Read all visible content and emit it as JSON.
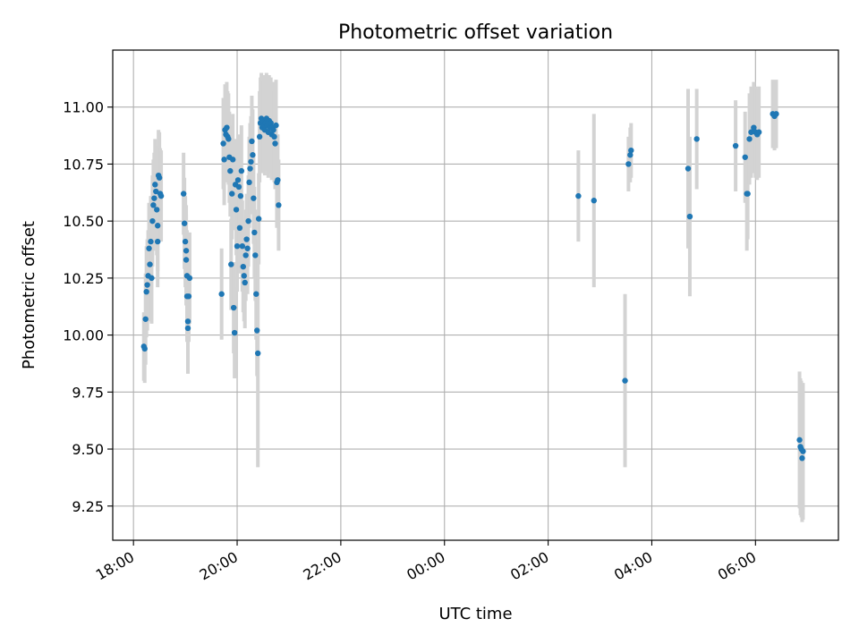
{
  "chart_data": {
    "type": "scatter",
    "title": "Photometric offset variation",
    "xlabel": "UTC time",
    "ylabel": "Photometric offset",
    "grid": true,
    "x_range": [
      "17:36",
      "07:36"
    ],
    "ylim": [
      9.1,
      11.25
    ],
    "xticks": [
      "18:00",
      "20:00",
      "22:00",
      "00:00",
      "02:00",
      "04:00",
      "06:00"
    ],
    "yticks": [
      "9.25",
      "9.50",
      "9.75",
      "10.00",
      "10.25",
      "10.50",
      "10.75",
      "11.00"
    ],
    "colors": {
      "point": "#1f77b4",
      "errorbar": "#d3d3d3",
      "grid": "#b0b0b0"
    },
    "points": [
      {
        "t": "18:12",
        "y": 9.95,
        "err": 0.15
      },
      {
        "t": "18:13",
        "y": 9.94,
        "err": 0.15
      },
      {
        "t": "18:14",
        "y": 10.07,
        "err": 0.2
      },
      {
        "t": "18:15",
        "y": 10.19,
        "err": 0.2
      },
      {
        "t": "18:16",
        "y": 10.22,
        "err": 0.2
      },
      {
        "t": "18:17",
        "y": 10.26,
        "err": 0.2
      },
      {
        "t": "18:18",
        "y": 10.38,
        "err": 0.2
      },
      {
        "t": "18:19",
        "y": 10.31,
        "err": 0.2
      },
      {
        "t": "18:20",
        "y": 10.41,
        "err": 0.2
      },
      {
        "t": "18:21",
        "y": 10.25,
        "err": 0.2
      },
      {
        "t": "18:22",
        "y": 10.5,
        "err": 0.2
      },
      {
        "t": "18:23",
        "y": 10.57,
        "err": 0.2
      },
      {
        "t": "18:24",
        "y": 10.6,
        "err": 0.2
      },
      {
        "t": "18:25",
        "y": 10.66,
        "err": 0.2
      },
      {
        "t": "18:26",
        "y": 10.63,
        "err": 0.2
      },
      {
        "t": "18:27",
        "y": 10.55,
        "err": 0.2
      },
      {
        "t": "18:28",
        "y": 10.48,
        "err": 0.2
      },
      {
        "t": "18:28",
        "y": 10.41,
        "err": 0.2
      },
      {
        "t": "18:29",
        "y": 10.7,
        "err": 0.2
      },
      {
        "t": "18:30",
        "y": 10.69,
        "err": 0.2
      },
      {
        "t": "18:31",
        "y": 10.62,
        "err": 0.2
      },
      {
        "t": "18:32",
        "y": 10.61,
        "err": 0.2
      },
      {
        "t": "18:58",
        "y": 10.62,
        "err": 0.18
      },
      {
        "t": "18:59",
        "y": 10.49,
        "err": 0.2
      },
      {
        "t": "19:00",
        "y": 10.41,
        "err": 0.2
      },
      {
        "t": "19:01",
        "y": 10.37,
        "err": 0.2
      },
      {
        "t": "19:01",
        "y": 10.33,
        "err": 0.2
      },
      {
        "t": "19:02",
        "y": 10.26,
        "err": 0.2
      },
      {
        "t": "19:02",
        "y": 10.17,
        "err": 0.2
      },
      {
        "t": "19:03",
        "y": 10.06,
        "err": 0.2
      },
      {
        "t": "19:03",
        "y": 10.03,
        "err": 0.2
      },
      {
        "t": "19:04",
        "y": 10.17,
        "err": 0.2
      },
      {
        "t": "19:05",
        "y": 10.25,
        "err": 0.2
      },
      {
        "t": "19:42",
        "y": 10.18,
        "err": 0.2
      },
      {
        "t": "19:44",
        "y": 10.84,
        "err": 0.2
      },
      {
        "t": "19:45",
        "y": 10.77,
        "err": 0.2
      },
      {
        "t": "19:46",
        "y": 10.9,
        "err": 0.2
      },
      {
        "t": "19:47",
        "y": 10.88,
        "err": 0.2
      },
      {
        "t": "19:48",
        "y": 10.91,
        "err": 0.2
      },
      {
        "t": "19:49",
        "y": 10.87,
        "err": 0.2
      },
      {
        "t": "19:50",
        "y": 10.86,
        "err": 0.2
      },
      {
        "t": "19:51",
        "y": 10.78,
        "err": 0.2
      },
      {
        "t": "19:52",
        "y": 10.72,
        "err": 0.2
      },
      {
        "t": "19:53",
        "y": 10.31,
        "err": 0.2
      },
      {
        "t": "19:54",
        "y": 10.62,
        "err": 0.2
      },
      {
        "t": "19:55",
        "y": 10.77,
        "err": 0.2
      },
      {
        "t": "19:56",
        "y": 10.12,
        "err": 0.2
      },
      {
        "t": "19:57",
        "y": 10.01,
        "err": 0.2
      },
      {
        "t": "19:58",
        "y": 10.66,
        "err": 0.2
      },
      {
        "t": "19:59",
        "y": 10.55,
        "err": 0.2
      },
      {
        "t": "20:00",
        "y": 10.39,
        "err": 0.2
      },
      {
        "t": "20:01",
        "y": 10.68,
        "err": 0.2
      },
      {
        "t": "20:02",
        "y": 10.65,
        "err": 0.2
      },
      {
        "t": "20:03",
        "y": 10.47,
        "err": 0.2
      },
      {
        "t": "20:04",
        "y": 10.61,
        "err": 0.2
      },
      {
        "t": "20:05",
        "y": 10.72,
        "err": 0.2
      },
      {
        "t": "20:06",
        "y": 10.39,
        "err": 0.2
      },
      {
        "t": "20:07",
        "y": 10.3,
        "err": 0.2
      },
      {
        "t": "20:08",
        "y": 10.26,
        "err": 0.2
      },
      {
        "t": "20:09",
        "y": 10.23,
        "err": 0.2
      },
      {
        "t": "20:10",
        "y": 10.35,
        "err": 0.2
      },
      {
        "t": "20:11",
        "y": 10.42,
        "err": 0.2
      },
      {
        "t": "20:12",
        "y": 10.38,
        "err": 0.2
      },
      {
        "t": "20:13",
        "y": 10.5,
        "err": 0.2
      },
      {
        "t": "20:14",
        "y": 10.67,
        "err": 0.2
      },
      {
        "t": "20:15",
        "y": 10.73,
        "err": 0.2
      },
      {
        "t": "20:16",
        "y": 10.76,
        "err": 0.2
      },
      {
        "t": "20:17",
        "y": 10.85,
        "err": 0.2
      },
      {
        "t": "20:18",
        "y": 10.79,
        "err": 0.2
      },
      {
        "t": "20:19",
        "y": 10.6,
        "err": 0.2
      },
      {
        "t": "20:20",
        "y": 10.45,
        "err": 0.2
      },
      {
        "t": "20:21",
        "y": 10.35,
        "err": 0.2
      },
      {
        "t": "20:22",
        "y": 10.18,
        "err": 0.2
      },
      {
        "t": "20:23",
        "y": 10.02,
        "err": 0.2
      },
      {
        "t": "20:24",
        "y": 9.92,
        "err": 0.5
      },
      {
        "t": "20:25",
        "y": 10.51,
        "err": 0.2
      },
      {
        "t": "20:26",
        "y": 10.87,
        "err": 0.2
      },
      {
        "t": "20:27",
        "y": 10.93,
        "err": 0.2
      },
      {
        "t": "20:28",
        "y": 10.95,
        "err": 0.2
      },
      {
        "t": "20:29",
        "y": 10.91,
        "err": 0.2
      },
      {
        "t": "20:30",
        "y": 10.94,
        "err": 0.2
      },
      {
        "t": "20:31",
        "y": 10.92,
        "err": 0.2
      },
      {
        "t": "20:32",
        "y": 10.9,
        "err": 0.2
      },
      {
        "t": "20:33",
        "y": 10.93,
        "err": 0.2
      },
      {
        "t": "20:34",
        "y": 10.95,
        "err": 0.2
      },
      {
        "t": "20:35",
        "y": 10.92,
        "err": 0.2
      },
      {
        "t": "20:36",
        "y": 10.89,
        "err": 0.2
      },
      {
        "t": "20:37",
        "y": 10.94,
        "err": 0.2
      },
      {
        "t": "20:38",
        "y": 10.91,
        "err": 0.2
      },
      {
        "t": "20:39",
        "y": 10.93,
        "err": 0.2
      },
      {
        "t": "20:40",
        "y": 10.88,
        "err": 0.2
      },
      {
        "t": "20:41",
        "y": 10.91,
        "err": 0.2
      },
      {
        "t": "20:42",
        "y": 10.9,
        "err": 0.2
      },
      {
        "t": "20:43",
        "y": 10.87,
        "err": 0.2
      },
      {
        "t": "20:44",
        "y": 10.84,
        "err": 0.2
      },
      {
        "t": "20:45",
        "y": 10.92,
        "err": 0.2
      },
      {
        "t": "20:46",
        "y": 10.67,
        "err": 0.2
      },
      {
        "t": "20:47",
        "y": 10.68,
        "err": 0.2
      },
      {
        "t": "20:48",
        "y": 10.57,
        "err": 0.2
      },
      {
        "t": "02:35",
        "y": 10.61,
        "err": 0.2
      },
      {
        "t": "02:53",
        "y": 10.59,
        "err": 0.38
      },
      {
        "t": "03:29",
        "y": 9.8,
        "err": 0.38
      },
      {
        "t": "03:33",
        "y": 10.75,
        "err": 0.12
      },
      {
        "t": "03:35",
        "y": 10.79,
        "err": 0.12
      },
      {
        "t": "03:36",
        "y": 10.81,
        "err": 0.12
      },
      {
        "t": "04:42",
        "y": 10.73,
        "err": 0.35
      },
      {
        "t": "04:44",
        "y": 10.52,
        "err": 0.35
      },
      {
        "t": "04:52",
        "y": 10.86,
        "err": 0.22
      },
      {
        "t": "05:37",
        "y": 10.83,
        "err": 0.2
      },
      {
        "t": "05:48",
        "y": 10.78,
        "err": 0.2
      },
      {
        "t": "05:50",
        "y": 10.62,
        "err": 0.25
      },
      {
        "t": "05:51",
        "y": 10.62,
        "err": 0.2
      },
      {
        "t": "05:53",
        "y": 10.86,
        "err": 0.2
      },
      {
        "t": "05:55",
        "y": 10.89,
        "err": 0.2
      },
      {
        "t": "05:58",
        "y": 10.91,
        "err": 0.2
      },
      {
        "t": "06:00",
        "y": 10.89,
        "err": 0.2
      },
      {
        "t": "06:02",
        "y": 10.88,
        "err": 0.2
      },
      {
        "t": "06:04",
        "y": 10.89,
        "err": 0.2
      },
      {
        "t": "06:20",
        "y": 10.97,
        "err": 0.15
      },
      {
        "t": "06:22",
        "y": 10.96,
        "err": 0.15
      },
      {
        "t": "06:24",
        "y": 10.97,
        "err": 0.15
      },
      {
        "t": "06:51",
        "y": 9.54,
        "err": 0.3
      },
      {
        "t": "06:52",
        "y": 9.51,
        "err": 0.3
      },
      {
        "t": "06:53",
        "y": 9.5,
        "err": 0.3
      },
      {
        "t": "06:54",
        "y": 9.46,
        "err": 0.28
      },
      {
        "t": "06:55",
        "y": 9.49,
        "err": 0.3
      }
    ]
  }
}
